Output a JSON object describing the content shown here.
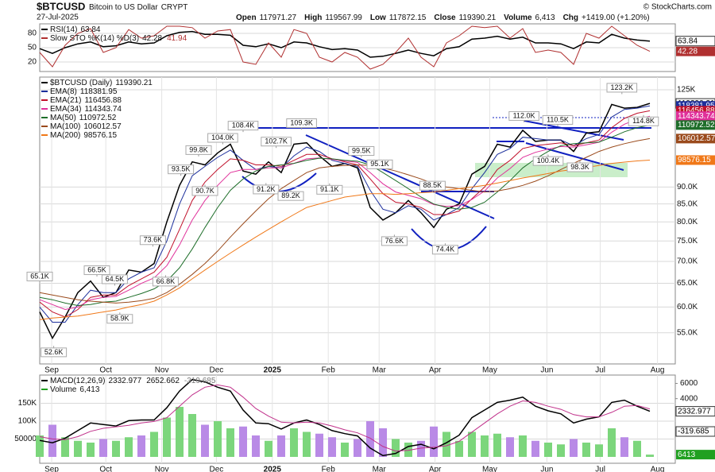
{
  "header": {
    "symbol": "$BTCUSD",
    "name": "Bitcoin to US Dollar",
    "exchange": "CRYPT",
    "date": "27-Jul-2025",
    "source": "© StockCharts.com",
    "quote": [
      {
        "label": "Open",
        "value": 117971.27
      },
      {
        "label": "High",
        "value": 119567.99
      },
      {
        "label": "Low",
        "value": 117872.15
      },
      {
        "label": "Close",
        "value": 119390.21
      },
      {
        "label": "Volume",
        "value": "6,413"
      },
      {
        "label": "Chg",
        "value": "+1419.00 (+1.20%)"
      }
    ]
  },
  "chart_data": [
    {
      "type": "line",
      "yaxis_side": "left",
      "grid": true,
      "xlim": [
        0,
        50
      ],
      "ylim": [
        0,
        100
      ],
      "yticks": [
        20,
        50,
        80
      ],
      "series": [
        {
          "name": "RSI(14)",
          "color": "#000000",
          "values": [
            48,
            38,
            50,
            58,
            62,
            52,
            54,
            62,
            58,
            60,
            75,
            82,
            84,
            78,
            78,
            76,
            55,
            52,
            58,
            50,
            62,
            60,
            52,
            46,
            48,
            45,
            30,
            32,
            38,
            45,
            38,
            33,
            48,
            52,
            68,
            70,
            74,
            68,
            72,
            60,
            60,
            58,
            48,
            62,
            60,
            78,
            70,
            66,
            63.84
          ]
        },
        {
          "name": "Slow STO %K(14) %D(3)",
          "color": "#b03030",
          "signal_last": 41.94,
          "values": [
            40,
            10,
            55,
            80,
            90,
            40,
            50,
            88,
            70,
            75,
            95,
            95,
            92,
            70,
            85,
            88,
            20,
            15,
            60,
            30,
            88,
            80,
            30,
            20,
            40,
            30,
            5,
            15,
            40,
            70,
            30,
            10,
            60,
            75,
            95,
            92,
            95,
            70,
            90,
            40,
            45,
            40,
            15,
            80,
            70,
            95,
            75,
            55,
            42.28
          ]
        }
      ]
    },
    {
      "type": "line",
      "log_scale": true,
      "yaxis_side": "right",
      "grid": true,
      "xlim": [
        0,
        50
      ],
      "xticks": [
        {
          "value": 0.94,
          "label": "Sep"
        },
        {
          "value": 5.2,
          "label": "Oct"
        },
        {
          "value": 9.6,
          "label": "Nov"
        },
        {
          "value": 13.9,
          "label": "Dec"
        },
        {
          "value": 18.3,
          "label": "2025"
        },
        {
          "value": 22.7,
          "label": "Feb"
        },
        {
          "value": 26.7,
          "label": "Mar"
        },
        {
          "value": 31.1,
          "label": "Apr"
        },
        {
          "value": 35.4,
          "label": "May"
        },
        {
          "value": 39.9,
          "label": "Jun"
        },
        {
          "value": 44.1,
          "label": "Jul"
        },
        {
          "value": 48.6,
          "label": "Aug"
        }
      ],
      "ylim": [
        49500,
        130500
      ],
      "yticks": [
        {
          "value": 55000,
          "label": "55.0K"
        },
        {
          "value": 60000,
          "label": "60.0K"
        },
        {
          "value": 65000,
          "label": "65.0K"
        },
        {
          "value": 70000,
          "label": "70.0K"
        },
        {
          "value": 75000,
          "label": "75.0K"
        },
        {
          "value": 80000,
          "label": "80.0K"
        },
        {
          "value": 85000,
          "label": "85.0K"
        },
        {
          "value": 90000,
          "label": "90.0K"
        },
        {
          "value": 125000,
          "label": "125K"
        }
      ],
      "series": [
        {
          "name": "$BTCUSD (Daily)",
          "color": "#000000",
          "values": [
            59000,
            54000,
            58000,
            63000,
            65500,
            62000,
            63000,
            68000,
            67500,
            69500,
            80000,
            90500,
            98000,
            97000,
            101000,
            104000,
            95000,
            94000,
            98000,
            94500,
            104000,
            104500,
            100000,
            96500,
            97500,
            96000,
            84000,
            80500,
            82500,
            86000,
            82500,
            78500,
            83500,
            85000,
            94000,
            96500,
            104000,
            103000,
            109000,
            105000,
            105500,
            105500,
            101500,
            108000,
            108500,
            119000,
            117500,
            117800,
            119390.21
          ]
        },
        {
          "name": "EMA(8)",
          "color": "#1c2f9c",
          "values": [
            60000,
            57000,
            57000,
            60500,
            63500,
            63000,
            63000,
            66000,
            67500,
            68500,
            75000,
            85000,
            93500,
            96500,
            99500,
            102000,
            98500,
            95500,
            96500,
            96000,
            100000,
            103000,
            101500,
            98500,
            97500,
            96500,
            89000,
            83500,
            82500,
            84500,
            83500,
            80500,
            82000,
            84000,
            89500,
            94500,
            100500,
            102500,
            106500,
            106000,
            105500,
            105500,
            103500,
            106000,
            107500,
            114000,
            117000,
            117500,
            118381.95
          ]
        },
        {
          "name": "EMA(21)",
          "color": "#c0102a",
          "values": [
            61000,
            59000,
            58000,
            59500,
            62000,
            62500,
            62500,
            64500,
            66000,
            67500,
            71000,
            78000,
            86000,
            91500,
            95500,
            99000,
            98500,
            97000,
            97000,
            96500,
            98500,
            100500,
            100500,
            99000,
            98000,
            97000,
            92500,
            88000,
            85500,
            85000,
            84000,
            82000,
            82000,
            83000,
            86500,
            90000,
            95500,
            98500,
            102500,
            103500,
            104000,
            104500,
            103500,
            104500,
            105500,
            110000,
            113500,
            115500,
            116456.88
          ]
        },
        {
          "name": "EMA(34)",
          "color": "#e0309a",
          "values": [
            61500,
            60500,
            59500,
            60000,
            61500,
            62000,
            62200,
            63500,
            65000,
            66200,
            69000,
            74000,
            80500,
            86000,
            90500,
            94500,
            95500,
            95500,
            96000,
            96000,
            97500,
            99000,
            99300,
            98800,
            98300,
            97800,
            94500,
            91000,
            88500,
            87500,
            86500,
            84800,
            84300,
            84500,
            86300,
            88800,
            92800,
            95800,
            99500,
            101200,
            102300,
            103200,
            103000,
            103800,
            104700,
            108300,
            111300,
            113200,
            114343.74
          ]
        },
        {
          "name": "MA(50)",
          "color": "#1e6e2a",
          "values": [
            62000,
            61500,
            60800,
            60300,
            60500,
            61000,
            61200,
            62000,
            62800,
            63800,
            65500,
            68500,
            73000,
            78500,
            84000,
            89000,
            92500,
            95000,
            96500,
            97000,
            97500,
            98500,
            99200,
            99000,
            98500,
            98200,
            97000,
            94500,
            92000,
            89500,
            87000,
            85000,
            84000,
            83500,
            84000,
            85500,
            88500,
            92000,
            96000,
            99000,
            101500,
            103500,
            104200,
            104500,
            104800,
            106500,
            108500,
            110000,
            110972.52
          ]
        },
        {
          "name": "MA(100)",
          "color": "#9a4a1c",
          "values": [
            63000,
            62500,
            62000,
            61500,
            61200,
            61000,
            60800,
            61000,
            61300,
            61800,
            63000,
            64800,
            67000,
            69500,
            72500,
            76000,
            79500,
            83000,
            86500,
            89500,
            92000,
            94500,
            96000,
            96500,
            96800,
            97000,
            96800,
            96000,
            95000,
            93800,
            92500,
            91000,
            90000,
            89500,
            89000,
            88500,
            88800,
            89500,
            90500,
            91800,
            93500,
            95500,
            97500,
            99500,
            101500,
            103000,
            104200,
            105200,
            106012.57
          ]
        },
        {
          "name": "MA(200)",
          "color": "#f07818",
          "values": [
            57500,
            57800,
            58000,
            58200,
            58600,
            59000,
            59400,
            60000,
            60500,
            61200,
            62500,
            64000,
            66000,
            68000,
            70000,
            72000,
            74000,
            76000,
            78000,
            80000,
            82000,
            84000,
            85000,
            86000,
            87000,
            87500,
            88000,
            88000,
            87800,
            88000,
            88300,
            88500,
            89000,
            89500,
            90000,
            90500,
            91200,
            92000,
            92800,
            93500,
            94200,
            95000,
            95500,
            96200,
            96800,
            97500,
            97900,
            98300,
            98576.15
          ]
        }
      ],
      "annotations": [
        {
          "label": "65.1K",
          "x": 0,
          "value": 65100
        },
        {
          "label": "52.6K",
          "x": 1.1,
          "value": 52600
        },
        {
          "label": "66.5K",
          "x": 4.5,
          "value": 66500
        },
        {
          "label": "64.5K",
          "x": 5.9,
          "value": 64500
        },
        {
          "label": "58.9K",
          "x": 6.3,
          "value": 58900
        },
        {
          "label": "73.6K",
          "x": 8.9,
          "value": 73600
        },
        {
          "label": "66.8K",
          "x": 9.9,
          "value": 66800
        },
        {
          "label": "93.5K",
          "x": 11.1,
          "value": 93500
        },
        {
          "label": "99.8K",
          "x": 12.5,
          "value": 99800
        },
        {
          "label": "90.7K",
          "x": 13,
          "value": 90700
        },
        {
          "label": "104.0K",
          "x": 14.4,
          "value": 104000
        },
        {
          "label": "108.4K",
          "x": 16,
          "value": 108400
        },
        {
          "label": "91.2K",
          "x": 17.8,
          "value": 91200
        },
        {
          "label": "102.7K",
          "x": 18.6,
          "value": 102700
        },
        {
          "label": "89.2K",
          "x": 19.75,
          "value": 89200
        },
        {
          "label": "109.3K",
          "x": 20.6,
          "value": 109300
        },
        {
          "label": "91.1K",
          "x": 22.8,
          "value": 91100
        },
        {
          "label": "99.5K",
          "x": 25.3,
          "value": 99500
        },
        {
          "label": "95.1K",
          "x": 26.75,
          "value": 95100
        },
        {
          "label": "76.6K",
          "x": 27.9,
          "value": 76600
        },
        {
          "label": "88.5K",
          "x": 30.9,
          "value": 88500
        },
        {
          "label": "74.4K",
          "x": 31.9,
          "value": 74400
        },
        {
          "label": "112.0K",
          "x": 38.1,
          "value": 112000
        },
        {
          "label": "100.4K",
          "x": 40,
          "value": 100400
        },
        {
          "label": "110.5K",
          "x": 40.75,
          "value": 110500
        },
        {
          "label": "98.3K",
          "x": 42.5,
          "value": 98300
        },
        {
          "label": "123.2K",
          "x": 45.8,
          "value": 123200
        },
        {
          "label": "114.8K",
          "x": 47.5,
          "value": 114800
        }
      ]
    },
    {
      "type": "line",
      "grid": true,
      "xlim": [
        0,
        50
      ],
      "xticks": [
        {
          "value": 0.94,
          "label": "Sep"
        },
        {
          "value": 5.2,
          "label": "Oct"
        },
        {
          "value": 9.6,
          "label": "Nov"
        },
        {
          "value": 13.9,
          "label": "Dec"
        },
        {
          "value": 18.3,
          "label": "2025"
        },
        {
          "value": 22.7,
          "label": "Feb"
        },
        {
          "value": 26.7,
          "label": "Mar"
        },
        {
          "value": 31.1,
          "label": "Apr"
        },
        {
          "value": 35.4,
          "label": "May"
        },
        {
          "value": 39.9,
          "label": "Jun"
        },
        {
          "value": 44.1,
          "label": "Jul"
        },
        {
          "value": 48.6,
          "label": "Aug"
        }
      ],
      "ylim": [
        -17800,
        229000
      ],
      "yticks": [
        50000,
        {
          "value": 100000,
          "label": "100K"
        },
        {
          "value": 150000,
          "label": "150K"
        }
      ],
      "y2lim": [
        -4500,
        7100
      ],
      "y2ticks": [
        2000,
        4000,
        6000
      ],
      "series": [
        {
          "name": "MACD(12,26,9)",
          "axis": "y2",
          "color": "#000000",
          "signal_color": "#c0308a",
          "histogram_last": -319.685,
          "values": [
            -1500,
            -1800,
            -1200,
            -200,
            800,
            600,
            400,
            1100,
            1200,
            1200,
            2800,
            5000,
            6500,
            6200,
            5500,
            5000,
            2500,
            800,
            700,
            0,
            800,
            1200,
            600,
            -200,
            -600,
            -900,
            -2500,
            -3500,
            -3200,
            -2300,
            -2000,
            -2600,
            -1800,
            -800,
            1500,
            2500,
            3500,
            3800,
            4200,
            3000,
            2400,
            2000,
            800,
            1300,
            1600,
            3500,
            3800,
            3000,
            2332.977
          ],
          "signal": [
            -1000,
            -1300,
            -1400,
            -1000,
            -300,
            100,
            300,
            500,
            800,
            1000,
            1500,
            3000,
            4500,
            5500,
            5800,
            5500,
            4200,
            2700,
            1700,
            900,
            800,
            900,
            800,
            400,
            -100,
            -500,
            -1200,
            -2300,
            -2900,
            -2800,
            -2500,
            -2400,
            -2200,
            -1600,
            -400,
            800,
            2000,
            3000,
            3700,
            3500,
            3000,
            2600,
            1900,
            1600,
            1600,
            2200,
            3000,
            3100,
            2652.662
          ]
        },
        {
          "name": "Volume",
          "type": "bar",
          "color": "#20a020",
          "up_color": "#7cd67c",
          "down_color": "#b98ae6",
          "legend_label": "6,413",
          "values": [
            60000,
            90000,
            55000,
            45000,
            40000,
            50000,
            45000,
            55000,
            60000,
            70000,
            110000,
            140000,
            120000,
            90000,
            100000,
            80000,
            85000,
            60000,
            45000,
            60000,
            80000,
            70000,
            65000,
            55000,
            40000,
            50000,
            100000,
            80000,
            50000,
            40000,
            45000,
            85000,
            70000,
            45000,
            70000,
            60000,
            65000,
            55000,
            60000,
            45000,
            40000,
            35000,
            50000,
            40000,
            35000,
            80000,
            55000,
            45000,
            6413
          ]
        }
      ]
    }
  ]
}
